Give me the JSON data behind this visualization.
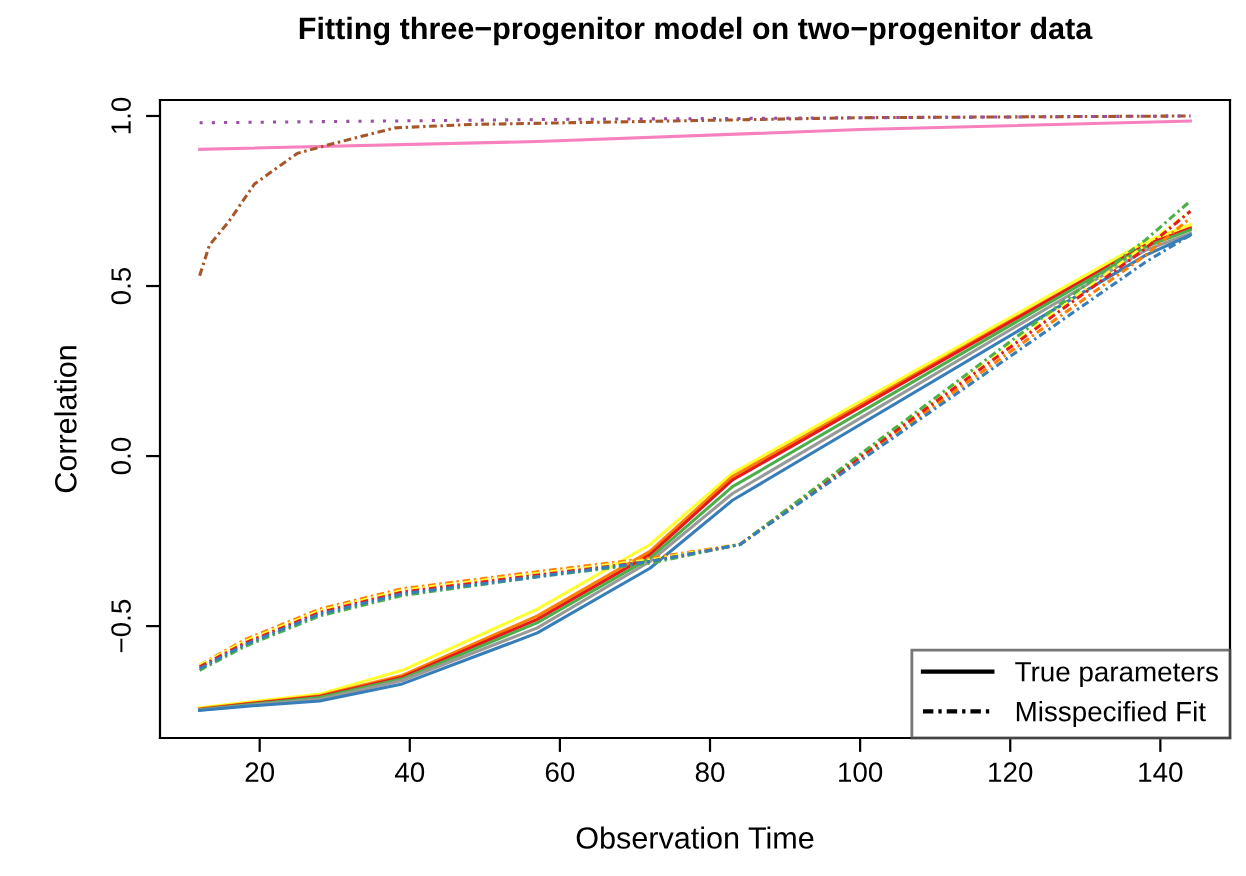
{
  "chart_data": {
    "type": "line",
    "title": "Fitting three−progenitor model on two−progenitor data",
    "xlabel": "Observation Time",
    "ylabel": "Correlation",
    "x": [
      12,
      18,
      28,
      39,
      57,
      72,
      83,
      138,
      144
    ],
    "series": [
      {
        "color": "#ffff33",
        "line_style": "solid",
        "values": [
          -0.74,
          -0.725,
          -0.7,
          -0.63,
          -0.45,
          -0.26,
          -0.05,
          0.63,
          0.68
        ]
      },
      {
        "color": "#ff7f00",
        "line_style": "solid",
        "values": [
          -0.743,
          -0.728,
          -0.705,
          -0.645,
          -0.47,
          -0.28,
          -0.06,
          0.62,
          0.67
        ]
      },
      {
        "color": "#e41a1c",
        "line_style": "solid",
        "values": [
          -0.745,
          -0.73,
          -0.707,
          -0.65,
          -0.48,
          -0.29,
          -0.07,
          0.62,
          0.67
        ]
      },
      {
        "color": "#4daf4a",
        "line_style": "solid",
        "values": [
          -0.746,
          -0.732,
          -0.71,
          -0.655,
          -0.49,
          -0.3,
          -0.09,
          0.615,
          0.665
        ]
      },
      {
        "color": "#999999",
        "line_style": "solid",
        "values": [
          -0.747,
          -0.734,
          -0.715,
          -0.66,
          -0.505,
          -0.31,
          -0.11,
          0.605,
          0.655
        ]
      },
      {
        "color": "#377eb8",
        "line_style": "solid",
        "values": [
          -0.748,
          -0.736,
          -0.72,
          -0.67,
          -0.52,
          -0.33,
          -0.13,
          0.59,
          0.65
        ]
      },
      {
        "color": "#ff7f00",
        "line_style": "dashed",
        "x": [
          12,
          18,
          28,
          39,
          57,
          72,
          84,
          138,
          144
        ],
        "values": [
          -0.615,
          -0.54,
          -0.45,
          -0.39,
          -0.34,
          -0.3,
          -0.26,
          0.59,
          0.7
        ]
      },
      {
        "color": "#ffff33",
        "line_style": "dashed",
        "x": [
          12,
          18,
          28,
          39,
          57,
          72,
          84,
          138,
          144
        ],
        "values": [
          -0.615,
          -0.545,
          -0.455,
          -0.395,
          -0.345,
          -0.305,
          -0.26,
          0.62,
          0.72
        ]
      },
      {
        "color": "#e41a1c",
        "line_style": "dashed",
        "x": [
          12,
          18,
          28,
          39,
          57,
          72,
          84,
          138,
          144
        ],
        "values": [
          -0.62,
          -0.55,
          -0.46,
          -0.4,
          -0.35,
          -0.31,
          -0.26,
          0.61,
          0.72
        ]
      },
      {
        "color": "#4daf4a",
        "line_style": "dashed",
        "x": [
          12,
          18,
          28,
          39,
          57,
          72,
          84,
          138,
          144
        ],
        "values": [
          -0.63,
          -0.56,
          -0.47,
          -0.41,
          -0.355,
          -0.315,
          -0.26,
          0.635,
          0.75
        ]
      },
      {
        "color": "#377eb8",
        "line_style": "dashed",
        "x": [
          12,
          18,
          28,
          39,
          57,
          72,
          84,
          138,
          144
        ],
        "values": [
          -0.625,
          -0.555,
          -0.465,
          -0.405,
          -0.355,
          -0.31,
          -0.26,
          0.57,
          0.65
        ]
      },
      {
        "color": "#f781bf",
        "line_style": "solid",
        "x": [
          12,
          57,
          100,
          144
        ],
        "values": [
          0.902,
          0.925,
          0.96,
          0.985
        ]
      },
      {
        "color": "#a65628",
        "line_style": "dashed",
        "x": [
          12,
          13.3,
          15.9,
          19.3,
          25,
          30,
          38,
          48,
          100,
          144
        ],
        "values": [
          0.53,
          0.62,
          0.69,
          0.8,
          0.89,
          0.92,
          0.965,
          0.975,
          0.995,
          1.0
        ]
      },
      {
        "color": "#984ea3",
        "line_style": "dotted",
        "x": [
          12,
          60,
          144
        ],
        "values": [
          0.98,
          0.99,
          1.0
        ]
      },
      {
        "name": "True parameters",
        "color": "#000000",
        "line_style": "solid",
        "values": [
          null,
          null,
          null,
          null,
          null,
          null,
          null,
          null,
          null
        ]
      },
      {
        "name": "Misspecified Fit",
        "color": "#000000",
        "line_style": "dashed",
        "values": [
          null,
          null,
          null,
          null,
          null,
          null,
          null,
          null,
          null
        ]
      }
    ],
    "xlim": [
      6.72,
      149.28
    ],
    "xticks": [
      20,
      40,
      60,
      80,
      100,
      120,
      140
    ],
    "ylim": [
      -0.829,
      1.047
    ],
    "yticks": [
      {
        "value": -0.5,
        "label": "−0.5"
      },
      {
        "value": 0,
        "label": "0.0"
      },
      0.5,
      {
        "value": 1,
        "label": "1.0"
      }
    ],
    "grid": false,
    "legend": "bottom right",
    "marker": "none"
  }
}
